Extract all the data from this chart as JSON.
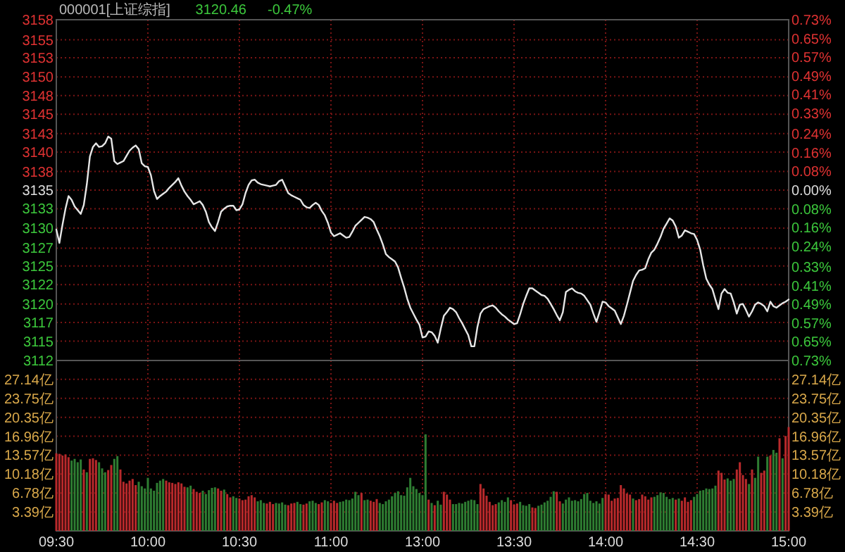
{
  "chart_data": [
    {
      "type": "line",
      "title": "000001[上证综指]",
      "annotations": [
        "3120.46",
        "-0.47%"
      ],
      "color": "#e6e6e6",
      "line_style": "solid",
      "grid": true,
      "categories": [
        null,
        null,
        null,
        null,
        null,
        null,
        null,
        null,
        null,
        null,
        null,
        null,
        null,
        null,
        null,
        null,
        null,
        null,
        null,
        null,
        null,
        null,
        null,
        null,
        null,
        null,
        null,
        null,
        null,
        null,
        null,
        null,
        null,
        null,
        null,
        null,
        null,
        null,
        null,
        null,
        null,
        null,
        null,
        null,
        null,
        null,
        null,
        null,
        null,
        null,
        null,
        null,
        null,
        null,
        null,
        null,
        null,
        null,
        null,
        null,
        null,
        null,
        null,
        null,
        null,
        null,
        null,
        null,
        null,
        null,
        null,
        null,
        null,
        null,
        null,
        null,
        null,
        null,
        null,
        null,
        null,
        null,
        null,
        null,
        null,
        null,
        null,
        null,
        null,
        null,
        null,
        null,
        null,
        null,
        null,
        null,
        null,
        null,
        null,
        null,
        null,
        null,
        null,
        null,
        null,
        null,
        null,
        null,
        null,
        null,
        null,
        null,
        null,
        null,
        null,
        null,
        null,
        null,
        null,
        null,
        null,
        null,
        null,
        null,
        null,
        null,
        null,
        null,
        null,
        null,
        null,
        null,
        null,
        null,
        null,
        null,
        null,
        null,
        null,
        null,
        null,
        null,
        null,
        null,
        null,
        null,
        null,
        null,
        null,
        null,
        null,
        null,
        null,
        null,
        null,
        null,
        null,
        null,
        null,
        null,
        null,
        null,
        null,
        null,
        null,
        null,
        null,
        null,
        null,
        null,
        null,
        null,
        null,
        null,
        null,
        null,
        null,
        null,
        null,
        null,
        null,
        null,
        null,
        null,
        null,
        null,
        null,
        null,
        null,
        null,
        null,
        null,
        null,
        null,
        null,
        null,
        null,
        null,
        null,
        null,
        null,
        null,
        null,
        null,
        null,
        null,
        null,
        null,
        null,
        null,
        null,
        null,
        null,
        null,
        null,
        null,
        null,
        null,
        null,
        null,
        null,
        null,
        null,
        null,
        null,
        null,
        null,
        null,
        null,
        null,
        null,
        null,
        null,
        null,
        null,
        null,
        null,
        null,
        null,
        null,
        null
      ],
      "values": [
        3129.9,
        3128.1,
        3130.5,
        3132.7,
        3134.4,
        3133.9,
        3133.0,
        3132.5,
        3132.0,
        3133.2,
        3136.0,
        3139.7,
        3141.0,
        3141.5,
        3141.0,
        3141.1,
        3141.5,
        3142.4,
        3142.1,
        3139.1,
        3138.7,
        3138.9,
        3139.1,
        3139.8,
        3140.5,
        3140.9,
        3141.2,
        3140.7,
        3138.8,
        3138.4,
        3138.3,
        3137.2,
        3135.1,
        3134.0,
        3134.4,
        3134.7,
        3135.0,
        3135.5,
        3135.9,
        3136.3,
        3136.8,
        3135.8,
        3135.0,
        3134.4,
        3133.9,
        3133.3,
        3133.5,
        3133.7,
        3133.2,
        3132.3,
        3130.9,
        3130.2,
        3129.7,
        3130.9,
        3132.3,
        3132.7,
        3133.0,
        3133.1,
        3133.1,
        3132.5,
        3132.6,
        3133.3,
        3134.8,
        3135.9,
        3136.5,
        3136.6,
        3136.2,
        3136.0,
        3135.9,
        3135.8,
        3135.7,
        3135.8,
        3135.9,
        3136.4,
        3136.6,
        3135.7,
        3134.8,
        3134.5,
        3134.3,
        3134.1,
        3133.9,
        3133.2,
        3132.9,
        3132.8,
        3133.2,
        3133.5,
        3133.2,
        3132.4,
        3131.8,
        3130.8,
        3129.5,
        3129.0,
        3129.2,
        3129.4,
        3129.1,
        3128.8,
        3128.9,
        3129.6,
        3130.4,
        3130.8,
        3131.2,
        3131.6,
        3131.5,
        3131.3,
        3130.9,
        3129.9,
        3129.0,
        3127.9,
        3126.6,
        3126.2,
        3125.9,
        3125.6,
        3124.8,
        3123.4,
        3122.1,
        3120.6,
        3119.4,
        3118.6,
        3117.8,
        3117.1,
        3115.4,
        3115.5,
        3116.2,
        3116.1,
        3115.6,
        3114.7,
        3116.6,
        3118.3,
        3118.8,
        3119.4,
        3119.2,
        3118.8,
        3118.0,
        3117.3,
        3116.5,
        3115.7,
        3114.2,
        3114.2,
        3116.8,
        3118.6,
        3119.2,
        3119.4,
        3119.6,
        3119.7,
        3119.4,
        3118.9,
        3118.5,
        3118.2,
        3117.8,
        3117.5,
        3117.2,
        3117.3,
        3118.5,
        3119.9,
        3121.0,
        3122.0,
        3122.0,
        3121.7,
        3121.4,
        3121.1,
        3121.0,
        3120.6,
        3119.9,
        3119.2,
        3118.4,
        3117.7,
        3118.8,
        3121.5,
        3121.8,
        3122.0,
        3121.6,
        3121.4,
        3121.3,
        3121.0,
        3120.4,
        3119.8,
        3118.6,
        3117.5,
        3118.8,
        3120.2,
        3120.1,
        3119.6,
        3119.3,
        3119.0,
        3118.1,
        3117.2,
        3118.3,
        3119.8,
        3121.4,
        3123.0,
        3123.8,
        3124.4,
        3124.5,
        3124.7,
        3125.9,
        3126.8,
        3127.2,
        3128.0,
        3128.9,
        3130.0,
        3130.7,
        3131.4,
        3131.1,
        3130.3,
        3128.8,
        3129.1,
        3129.8,
        3129.6,
        3129.4,
        3129.3,
        3128.5,
        3127.2,
        3125.1,
        3123.3,
        3122.5,
        3121.9,
        3120.5,
        3119.2,
        3121.3,
        3121.9,
        3121.4,
        3121.3,
        3120.1,
        3118.6,
        3119.8,
        3119.9,
        3119.1,
        3118.2,
        3118.9,
        3119.8,
        3120.1,
        3119.9,
        3119.6,
        3118.9,
        3120.2,
        3119.6,
        3119.4,
        3119.7,
        3120.0,
        3120.2,
        3120.5
      ],
      "ylim": [
        3112.3,
        3158.1
      ],
      "yticks": [
        {
          "value": 3112.3,
          "label": "3112"
        },
        {
          "value": 3114.9,
          "label": "3115"
        },
        {
          "value": 3117.4,
          "label": "3117"
        },
        {
          "value": 3119.9,
          "label": "3120"
        },
        {
          "value": 3122.5,
          "label": "3122"
        },
        {
          "value": 3125,
          "label": "3125"
        },
        {
          "value": 3127.4,
          "label": "3127"
        },
        {
          "value": 3130.1,
          "label": "3130"
        },
        {
          "value": 3132.7,
          "label": "3133"
        },
        {
          "value": 3135.2,
          "label": "3135"
        },
        {
          "value": 3137.7,
          "label": "3138"
        },
        {
          "value": 3140.3,
          "label": "3140"
        },
        {
          "value": 3142.8,
          "label": "3143"
        },
        {
          "value": 3145.4,
          "label": "3145"
        },
        {
          "value": 3147.9,
          "label": "3148"
        },
        {
          "value": 3150.4,
          "label": "3150"
        },
        {
          "value": 3153,
          "label": "3153"
        },
        {
          "value": 3155.4,
          "label": "3155"
        },
        {
          "value": 3158.1,
          "label": "3158"
        }
      ],
      "y2lim": [
        -0.73,
        0.73
      ],
      "y2ticks": [
        {
          "value": -0.73,
          "label": "0.73%"
        },
        {
          "value": -0.65,
          "label": "0.65%"
        },
        {
          "value": -0.57,
          "label": "0.57%"
        },
        {
          "value": -0.49,
          "label": "0.49%"
        },
        {
          "value": -0.41,
          "label": "0.41%"
        },
        {
          "value": -0.33,
          "label": "0.33%"
        },
        {
          "value": -0.24,
          "label": "0.24%"
        },
        {
          "value": -0.16,
          "label": "0.16%"
        },
        {
          "value": -0.08,
          "label": "0.08%"
        },
        {
          "value": 0,
          "label": "0.00%"
        },
        {
          "value": 0.08,
          "label": "0.08%"
        },
        {
          "value": 0.16,
          "label": "0.16%"
        },
        {
          "value": 0.24,
          "label": "0.24%"
        },
        {
          "value": 0.33,
          "label": "0.33%"
        },
        {
          "value": 0.41,
          "label": "0.41%"
        },
        {
          "value": 0.49,
          "label": "0.49%"
        },
        {
          "value": 0.57,
          "label": "0.57%"
        },
        {
          "value": 0.65,
          "label": "0.65%"
        },
        {
          "value": 0.73,
          "label": "0.73%"
        }
      ]
    },
    {
      "type": "bar",
      "grid": true,
      "categories": [
        "09:30",
        null,
        null,
        null,
        null,
        null,
        null,
        null,
        null,
        null,
        null,
        null,
        null,
        null,
        null,
        null,
        null,
        null,
        null,
        null,
        null,
        null,
        null,
        null,
        null,
        null,
        null,
        null,
        null,
        null,
        "10:00",
        null,
        null,
        null,
        null,
        null,
        null,
        null,
        null,
        null,
        null,
        null,
        null,
        null,
        null,
        null,
        null,
        null,
        null,
        null,
        null,
        null,
        null,
        null,
        null,
        null,
        null,
        null,
        null,
        null,
        "10:30",
        null,
        null,
        null,
        null,
        null,
        null,
        null,
        null,
        null,
        null,
        null,
        null,
        null,
        null,
        null,
        null,
        null,
        null,
        null,
        null,
        null,
        null,
        null,
        null,
        null,
        null,
        null,
        null,
        null,
        "11:00",
        null,
        null,
        null,
        null,
        null,
        null,
        null,
        null,
        null,
        null,
        null,
        null,
        null,
        null,
        null,
        null,
        null,
        null,
        null,
        null,
        null,
        null,
        null,
        null,
        null,
        null,
        null,
        null,
        null,
        "13:00",
        null,
        null,
        null,
        null,
        null,
        null,
        null,
        null,
        null,
        null,
        null,
        null,
        null,
        null,
        null,
        null,
        null,
        null,
        null,
        null,
        null,
        null,
        null,
        null,
        null,
        null,
        null,
        null,
        null,
        "13:30",
        null,
        null,
        null,
        null,
        null,
        null,
        null,
        null,
        null,
        null,
        null,
        null,
        null,
        null,
        null,
        null,
        null,
        null,
        null,
        null,
        null,
        null,
        null,
        null,
        null,
        null,
        null,
        null,
        null,
        "14:00",
        null,
        null,
        null,
        null,
        null,
        null,
        null,
        null,
        null,
        null,
        null,
        null,
        null,
        null,
        null,
        null,
        null,
        null,
        null,
        null,
        null,
        null,
        null,
        null,
        null,
        null,
        null,
        null,
        null,
        "14:30",
        null,
        null,
        null,
        null,
        null,
        null,
        null,
        null,
        null,
        null,
        null,
        null,
        null,
        null,
        null,
        null,
        null,
        null,
        null,
        null,
        null,
        null,
        null,
        null,
        null,
        null,
        null,
        null,
        null,
        "15:00"
      ],
      "values": [
        13.9,
        13.8,
        13.5,
        13.7,
        13.2,
        12.6,
        12.9,
        12.3,
        12.8,
        11.0,
        10.5,
        12.9,
        13.0,
        12.7,
        12.3,
        11.2,
        10.5,
        10.9,
        11.8,
        12.9,
        13.4,
        11.0,
        8.8,
        8.5,
        9.0,
        9.3,
        8.2,
        8.8,
        8.0,
        7.6,
        9.5,
        7.6,
        7.2,
        8.6,
        9.0,
        9.3,
        9.0,
        8.7,
        8.6,
        8.4,
        8.7,
        8.5,
        7.9,
        7.8,
        8.1,
        7.5,
        7.0,
        6.8,
        7.2,
        6.6,
        7.3,
        7.7,
        7.8,
        7.6,
        7.2,
        7.4,
        6.6,
        6.0,
        6.2,
        5.9,
        5.8,
        5.5,
        5.6,
        6.2,
        6.4,
        6.0,
        5.3,
        5.5,
        5.0,
        4.9,
        5.2,
        4.8,
        5.0,
        4.9,
        5.1,
        4.7,
        4.6,
        4.9,
        5.0,
        5.2,
        4.8,
        4.7,
        4.9,
        5.3,
        5.4,
        5.0,
        4.8,
        5.1,
        5.5,
        5.3,
        5.0,
        5.4,
        5.0,
        5.2,
        5.3,
        5.6,
        5.5,
        5.8,
        7.0,
        6.4,
        6.8,
        5.5,
        5.6,
        5.4,
        5.2,
        5.7,
        5.0,
        4.8,
        5.3,
        5.6,
        6.2,
        6.8,
        7.1,
        6.4,
        6.3,
        7.8,
        9.5,
        8.0,
        7.5,
        6.8,
        6.4,
        17.3,
        5.6,
        5.0,
        4.6,
        5.4,
        4.7,
        7.0,
        6.5,
        5.6,
        4.8,
        4.8,
        5.0,
        4.9,
        5.2,
        5.4,
        5.6,
        5.5,
        4.8,
        8.4,
        7.6,
        6.3,
        5.2,
        4.6,
        4.8,
        5.1,
        5.5,
        5.2,
        6.0,
        5.5,
        4.7,
        4.9,
        5.2,
        4.6,
        4.5,
        4.8,
        4.2,
        4.1,
        4.5,
        4.7,
        5.1,
        5.4,
        6.1,
        7.1,
        7.0,
        5.3,
        4.9,
        5.6,
        6.0,
        5.4,
        5.5,
        5.3,
        5.7,
        6.6,
        6.8,
        5.4,
        5.0,
        5.3,
        4.9,
        5.9,
        6.6,
        6.5,
        5.4,
        5.8,
        5.9,
        8.2,
        7.6,
        6.7,
        6.5,
        5.8,
        5.5,
        5.7,
        6.5,
        6.2,
        5.6,
        6.0,
        6.1,
        6.4,
        6.9,
        6.8,
        6.1,
        5.7,
        5.9,
        5.6,
        5.8,
        5.4,
        6.0,
        5.2,
        5.5,
        6.1,
        6.6,
        7.2,
        7.3,
        7.6,
        7.5,
        7.6,
        8.1,
        10.8,
        10.4,
        9.2,
        9.4,
        9.0,
        9.3,
        11.0,
        12.3,
        10.0,
        9.3,
        8.4,
        11.0,
        9.5,
        13.3,
        10.4,
        10.8,
        13.3,
        13.5,
        14.5,
        14.0,
        16.6,
        13.0,
        17.0,
        18.6
      ],
      "colors": [
        "#b8292b",
        "#b8292b",
        "#b8292b",
        "#b8292b",
        "#b8292b",
        "#2e7d32",
        "#2e7d32",
        "#2e7d32",
        "#2e7d32",
        "#b8292b",
        "#2e7d32",
        "#b8292b",
        "#b8292b",
        "#b8292b",
        "#2e7d32",
        "#2e7d32",
        "#2e7d32",
        "#b8292b",
        "#b8292b",
        "#2e7d32",
        "#2e7d32",
        "#b8292b",
        "#b8292b",
        "#b8292b",
        "#b8292b",
        "#b8292b",
        "#b8292b",
        "#2e7d32",
        "#2e7d32",
        "#2e7d32",
        "#2e7d32",
        "#2e7d32",
        "#2e7d32",
        "#2e7d32",
        "#2e7d32",
        "#2e7d32",
        "#b8292b",
        "#b8292b",
        "#b8292b",
        "#b8292b",
        "#b8292b",
        "#b8292b",
        "#b8292b",
        "#2e7d32",
        "#2e7d32",
        "#b8292b",
        "#b8292b",
        "#b8292b",
        "#2e7d32",
        "#2e7d32",
        "#2e7d32",
        "#2e7d32",
        "#2e7d32",
        "#b8292b",
        "#b8292b",
        "#2e7d32",
        "#b8292b",
        "#b8292b",
        "#2e7d32",
        "#2e7d32",
        "#b8292b",
        "#b8292b",
        "#b8292b",
        "#b8292b",
        "#b8292b",
        "#b8292b",
        "#2e7d32",
        "#2e7d32",
        "#2e7d32",
        "#b8292b",
        "#b8292b",
        "#b8292b",
        "#2e7d32",
        "#2e7d32",
        "#2e7d32",
        "#2e7d32",
        "#b8292b",
        "#b8292b",
        "#b8292b",
        "#2e7d32",
        "#2e7d32",
        "#b8292b",
        "#b8292b",
        "#2e7d32",
        "#2e7d32",
        "#2e7d32",
        "#b8292b",
        "#b8292b",
        "#2e7d32",
        "#2e7d32",
        "#b8292b",
        "#b8292b",
        "#b8292b",
        "#2e7d32",
        "#2e7d32",
        "#2e7d32",
        "#2e7d32",
        "#2e7d32",
        "#2e7d32",
        "#2e7d32",
        "#b8292b",
        "#2e7d32",
        "#2e7d32",
        "#b8292b",
        "#b8292b",
        "#b8292b",
        "#2e7d32",
        "#2e7d32",
        "#2e7d32",
        "#2e7d32",
        "#2e7d32",
        "#2e7d32",
        "#2e7d32",
        "#2e7d32",
        "#2e7d32",
        "#2e7d32",
        "#2e7d32",
        "#2e7d32",
        "#2e7d32",
        "#2e7d32",
        "#2e7d32",
        "#2e7d32",
        "#b8292b",
        "#2e7d32",
        "#b8292b",
        "#2e7d32",
        "#2e7d32",
        "#b8292b",
        "#b8292b",
        "#b8292b",
        "#2e7d32",
        "#2e7d32",
        "#2e7d32",
        "#2e7d32",
        "#2e7d32",
        "#2e7d32",
        "#2e7d32",
        "#2e7d32",
        "#2e7d32",
        "#b8292b",
        "#b8292b",
        "#b8292b",
        "#b8292b",
        "#b8292b",
        "#b8292b",
        "#2e7d32",
        "#2e7d32",
        "#2e7d32",
        "#2e7d32",
        "#b8292b",
        "#b8292b",
        "#b8292b",
        "#2e7d32",
        "#2e7d32",
        "#2e7d32",
        "#2e7d32",
        "#b8292b",
        "#b8292b",
        "#2e7d32",
        "#2e7d32",
        "#2e7d32",
        "#2e7d32",
        "#2e7d32",
        "#2e7d32",
        "#b8292b",
        "#b8292b",
        "#2e7d32",
        "#2e7d32",
        "#2e7d32",
        "#2e7d32",
        "#2e7d32",
        "#2e7d32",
        "#2e7d32",
        "#2e7d32",
        "#2e7d32",
        "#2e7d32",
        "#2e7d32",
        "#2e7d32",
        "#2e7d32",
        "#2e7d32",
        "#b8292b",
        "#b8292b",
        "#b8292b",
        "#b8292b",
        "#b8292b",
        "#b8292b",
        "#b8292b",
        "#b8292b",
        "#b8292b",
        "#2e7d32",
        "#b8292b",
        "#b8292b",
        "#b8292b",
        "#b8292b",
        "#b8292b",
        "#b8292b",
        "#2e7d32",
        "#2e7d32",
        "#2e7d32",
        "#2e7d32",
        "#2e7d32",
        "#2e7d32",
        "#2e7d32",
        "#b8292b",
        "#2e7d32",
        "#b8292b",
        "#b8292b",
        "#b8292b",
        "#b8292b",
        "#2e7d32",
        "#2e7d32",
        "#2e7d32",
        "#2e7d32",
        "#2e7d32",
        "#2e7d32",
        "#2e7d32",
        "#2e7d32",
        "#b8292b",
        "#b8292b",
        "#b8292b",
        "#2e7d32",
        "#2e7d32",
        "#2e7d32",
        "#b8292b",
        "#b8292b",
        "#b8292b",
        "#b8292b",
        "#2e7d32",
        "#b8292b",
        "#2e7d32",
        "#2e7d32",
        "#b8292b",
        "#b8292b",
        "#2e7d32",
        "#b8292b",
        "#2e7d32",
        "#2e7d32",
        "#b8292b",
        "#2e7d32",
        "#b8292b",
        "#b8292b"
      ],
      "ylim": [
        0,
        30.53
      ],
      "yticks": [
        {
          "value": 3.39,
          "label": "3.39亿"
        },
        {
          "value": 6.78,
          "label": "6.78亿"
        },
        {
          "value": 10.18,
          "label": "10.18亿"
        },
        {
          "value": 13.57,
          "label": "13.57亿"
        },
        {
          "value": 16.96,
          "label": "16.96亿"
        },
        {
          "value": 20.35,
          "label": "20.35亿"
        },
        {
          "value": 23.75,
          "label": "23.75亿"
        },
        {
          "value": 27.14,
          "label": "27.14亿"
        }
      ],
      "y2lim": [
        0,
        30.53
      ],
      "y2ticks": [
        {
          "value": 3.39,
          "label": "3.39亿"
        },
        {
          "value": 6.78,
          "label": "6.78亿"
        },
        {
          "value": 10.18,
          "label": "10.18亿"
        },
        {
          "value": 13.57,
          "label": "13.57亿"
        },
        {
          "value": 16.96,
          "label": "16.96亿"
        },
        {
          "value": 20.35,
          "label": "20.35亿"
        },
        {
          "value": 23.75,
          "label": "23.75亿"
        },
        {
          "value": 27.14,
          "label": "27.14亿"
        }
      ]
    }
  ]
}
